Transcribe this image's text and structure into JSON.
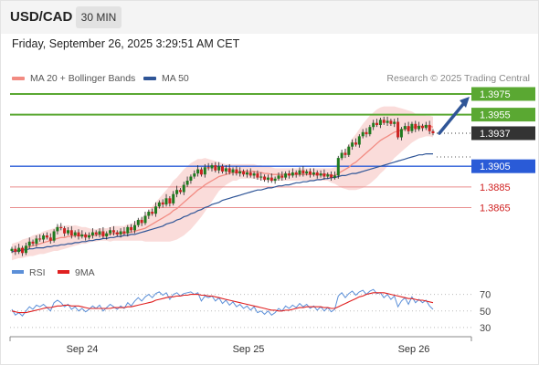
{
  "header": {
    "pair": "USD/CAD",
    "timeframe": "30 MIN"
  },
  "timestamp": "Friday, September 26, 2025 3:29:51 AM CET",
  "legend": {
    "ma20_label": "MA 20 + Bollinger Bands",
    "ma50_label": "MA 50",
    "credit": "Research © 2025 Trading Central"
  },
  "rsi_legend": {
    "rsi_label": "RSI",
    "ma_label": "9MA"
  },
  "colors": {
    "ma20": "#f28b82",
    "bands": "#f8d0cd",
    "ma50": "#2f5597",
    "resistance": "#5aa832",
    "support_major": "#2a5bd7",
    "support_minor": "#e98e8e",
    "current": "#333333",
    "arrow": "#2f5597",
    "rsi": "#5b8fd8",
    "rsi_ma": "#e02020",
    "candle_up": "#1f7a1f",
    "candle_down": "#cc2222"
  },
  "chart_data": [
    {
      "type": "candlestick",
      "title": "USD/CAD",
      "x_labels": [
        "Sep 24",
        "Sep 25",
        "Sep 26"
      ],
      "price_levels": [
        {
          "value": 1.3975,
          "label": "1.3975",
          "kind": "resistance"
        },
        {
          "value": 1.3955,
          "label": "1.3955",
          "kind": "resistance"
        },
        {
          "value": 1.3937,
          "label": "1.3937",
          "kind": "current"
        },
        {
          "value": 1.3905,
          "label": "1.3905",
          "kind": "support_major"
        },
        {
          "value": 1.3885,
          "label": "1.3885",
          "kind": "support_minor"
        },
        {
          "value": 1.3865,
          "label": "1.3865",
          "kind": "support_minor"
        }
      ],
      "close": [
        1.3825,
        1.3822,
        1.3826,
        1.3821,
        1.3828,
        1.3832,
        1.383,
        1.3835,
        1.3834,
        1.3838,
        1.3836,
        1.3833,
        1.3842,
        1.3846,
        1.3845,
        1.384,
        1.3843,
        1.3838,
        1.3841,
        1.3837,
        1.3839,
        1.3836,
        1.3838,
        1.3841,
        1.3839,
        1.3842,
        1.3837,
        1.384,
        1.3843,
        1.3841,
        1.3839,
        1.3842,
        1.384,
        1.3846,
        1.3843,
        1.3848,
        1.3853,
        1.385,
        1.3857,
        1.3861,
        1.3859,
        1.3866,
        1.387,
        1.3868,
        1.3874,
        1.3869,
        1.3878,
        1.3882,
        1.388,
        1.3887,
        1.3891,
        1.3895,
        1.3898,
        1.3902,
        1.3897,
        1.3904,
        1.3903,
        1.3906,
        1.3901,
        1.3905,
        1.39,
        1.3903,
        1.3899,
        1.3902,
        1.3898,
        1.39,
        1.3897,
        1.3899,
        1.3896,
        1.3898,
        1.3894,
        1.3895,
        1.3892,
        1.3894,
        1.3891,
        1.3893,
        1.3896,
        1.3894,
        1.3898,
        1.3896,
        1.3899,
        1.3897,
        1.3901,
        1.3898,
        1.39,
        1.3897,
        1.3899,
        1.3896,
        1.3898,
        1.3895,
        1.3897,
        1.3894,
        1.3896,
        1.3913,
        1.3918,
        1.3916,
        1.3924,
        1.3928,
        1.3926,
        1.3934,
        1.3938,
        1.3936,
        1.3943,
        1.3947,
        1.3945,
        1.395,
        1.3947,
        1.3949,
        1.3946,
        1.3948,
        1.3933,
        1.3941,
        1.3944,
        1.3939,
        1.3946,
        1.3941,
        1.3944,
        1.3942,
        1.3945,
        1.3939,
        1.3937
      ],
      "ma20": [
        1.3822,
        1.3823,
        1.3824,
        1.3825,
        1.3826,
        1.3827,
        1.3828,
        1.3829,
        1.383,
        1.3831,
        1.3832,
        1.3833,
        1.3834,
        1.3835,
        1.3836,
        1.3836,
        1.3837,
        1.3837,
        1.3838,
        1.3838,
        1.3838,
        1.3838,
        1.3838,
        1.3838,
        1.3838,
        1.3839,
        1.3839,
        1.3839,
        1.3839,
        1.384,
        1.384,
        1.384,
        1.384,
        1.3841,
        1.3841,
        1.3842,
        1.3843,
        1.3844,
        1.3845,
        1.3847,
        1.3849,
        1.3851,
        1.3853,
        1.3855,
        1.3857,
        1.3859,
        1.3862,
        1.3864,
        1.3867,
        1.387,
        1.3873,
        1.3876,
        1.3879,
        1.3882,
        1.3884,
        1.3887,
        1.3889,
        1.3891,
        1.3893,
        1.3895,
        1.3896,
        1.3897,
        1.3898,
        1.3899,
        1.3899,
        1.39,
        1.39,
        1.39,
        1.39,
        1.39,
        1.3899,
        1.3899,
        1.3898,
        1.3898,
        1.3897,
        1.3897,
        1.3897,
        1.3897,
        1.3897,
        1.3897,
        1.3897,
        1.3897,
        1.3897,
        1.3897,
        1.3897,
        1.3897,
        1.3897,
        1.3897,
        1.3897,
        1.3897,
        1.3897,
        1.3896,
        1.3896,
        1.3898,
        1.39,
        1.3902,
        1.3904,
        1.3907,
        1.3909,
        1.3912,
        1.3915,
        1.3918,
        1.3921,
        1.3924,
        1.3927,
        1.393,
        1.3932,
        1.3934,
        1.3936,
        1.3938,
        1.3939,
        1.394,
        1.3941,
        1.3942,
        1.3943,
        1.3943,
        1.3944,
        1.3944,
        1.3944,
        1.3944,
        1.3943
      ],
      "band_half": [
        0.0008,
        0.0008,
        0.0008,
        0.0009,
        0.0009,
        0.0009,
        0.001,
        0.001,
        0.001,
        0.0011,
        0.0011,
        0.0011,
        0.0011,
        0.0012,
        0.0012,
        0.0011,
        0.0011,
        0.001,
        0.001,
        0.0009,
        0.0008,
        0.0008,
        0.0007,
        0.0006,
        0.0006,
        0.0006,
        0.0006,
        0.0006,
        0.0007,
        0.0007,
        0.0007,
        0.0007,
        0.0007,
        0.0008,
        0.0008,
        0.0009,
        0.001,
        0.0011,
        0.0013,
        0.0015,
        0.0017,
        0.0019,
        0.0021,
        0.0023,
        0.0025,
        0.0027,
        0.0029,
        0.003,
        0.0031,
        0.0032,
        0.0032,
        0.0032,
        0.0031,
        0.003,
        0.0028,
        0.0026,
        0.0023,
        0.002,
        0.0017,
        0.0014,
        0.0012,
        0.001,
        0.0009,
        0.0008,
        0.0008,
        0.0007,
        0.0007,
        0.0007,
        0.0007,
        0.0007,
        0.0007,
        0.0007,
        0.0007,
        0.0007,
        0.0007,
        0.0006,
        0.0006,
        0.0006,
        0.0006,
        0.0006,
        0.0006,
        0.0006,
        0.0006,
        0.0006,
        0.0006,
        0.0006,
        0.0006,
        0.0006,
        0.0006,
        0.0006,
        0.0006,
        0.0007,
        0.0008,
        0.0012,
        0.0016,
        0.0019,
        0.0022,
        0.0025,
        0.0027,
        0.0029,
        0.0031,
        0.0032,
        0.0033,
        0.0033,
        0.0033,
        0.0032,
        0.0031,
        0.0029,
        0.0027,
        0.0025,
        0.0023,
        0.0021,
        0.0019,
        0.0017,
        0.0015,
        0.0013,
        0.0012,
        0.0011,
        0.001,
        0.001,
        0.001
      ],
      "ma50": [
        1.3822,
        1.3823,
        1.3823,
        1.3824,
        1.3824,
        1.3825,
        1.3825,
        1.3826,
        1.3826,
        1.3826,
        1.3827,
        1.3827,
        1.3828,
        1.3828,
        1.3829,
        1.3829,
        1.383,
        1.383,
        1.3831,
        1.3831,
        1.3832,
        1.3832,
        1.3833,
        1.3833,
        1.3834,
        1.3834,
        1.3835,
        1.3835,
        1.3836,
        1.3836,
        1.3837,
        1.3837,
        1.3838,
        1.3838,
        1.3839,
        1.3839,
        1.384,
        1.3841,
        1.3842,
        1.3843,
        1.3844,
        1.3845,
        1.3846,
        1.3847,
        1.3849,
        1.385,
        1.3851,
        1.3853,
        1.3854,
        1.3856,
        1.3857,
        1.3859,
        1.386,
        1.3862,
        1.3863,
        1.3865,
        1.3866,
        1.3868,
        1.3869,
        1.387,
        1.3872,
        1.3873,
        1.3874,
        1.3875,
        1.3876,
        1.3877,
        1.3878,
        1.3879,
        1.388,
        1.3881,
        1.3882,
        1.3882,
        1.3883,
        1.3884,
        1.3884,
        1.3885,
        1.3886,
        1.3886,
        1.3887,
        1.3887,
        1.3888,
        1.3889,
        1.3889,
        1.389,
        1.389,
        1.3891,
        1.3891,
        1.3892,
        1.3892,
        1.3893,
        1.3893,
        1.3894,
        1.3894,
        1.3895,
        1.3896,
        1.3896,
        1.3897,
        1.3898,
        1.3898,
        1.3899,
        1.39,
        1.3901,
        1.3902,
        1.3903,
        1.3904,
        1.3905,
        1.3906,
        1.3907,
        1.3908,
        1.3909,
        1.391,
        1.3911,
        1.3912,
        1.3913,
        1.3914,
        1.3915,
        1.3916,
        1.3916,
        1.3917,
        1.3917,
        1.3917
      ],
      "projection_target": 1.3975
    },
    {
      "type": "line",
      "title": "RSI",
      "y_ticks": [
        70,
        50,
        30
      ],
      "ylim": [
        20,
        85
      ],
      "series": [
        {
          "name": "RSI",
          "values": [
            52,
            45,
            48,
            44,
            50,
            55,
            52,
            57,
            55,
            58,
            54,
            50,
            60,
            63,
            60,
            55,
            58,
            52,
            55,
            50,
            53,
            49,
            52,
            56,
            53,
            57,
            50,
            54,
            58,
            55,
            52,
            56,
            53,
            60,
            56,
            62,
            66,
            62,
            67,
            70,
            66,
            71,
            73,
            69,
            72,
            64,
            70,
            72,
            68,
            71,
            72,
            73,
            70,
            72,
            62,
            68,
            66,
            68,
            62,
            66,
            59,
            63,
            57,
            61,
            55,
            58,
            53,
            56,
            51,
            55,
            48,
            50,
            46,
            50,
            45,
            48,
            53,
            50,
            56,
            53,
            57,
            54,
            59,
            55,
            58,
            53,
            56,
            51,
            55,
            50,
            54,
            49,
            52,
            68,
            72,
            66,
            71,
            74,
            69,
            73,
            75,
            70,
            74,
            76,
            71,
            72,
            66,
            70,
            64,
            68,
            55,
            62,
            66,
            58,
            67,
            60,
            64,
            60,
            63,
            56,
            52
          ]
        },
        {
          "name": "9MA",
          "values": [
            50,
            49,
            48,
            48,
            48,
            49,
            50,
            51,
            52,
            53,
            54,
            54,
            55,
            56,
            56,
            57,
            57,
            56,
            56,
            56,
            55,
            54,
            53,
            53,
            53,
            53,
            53,
            53,
            53,
            54,
            54,
            54,
            54,
            55,
            55,
            56,
            57,
            58,
            59,
            60,
            61,
            63,
            64,
            65,
            66,
            67,
            67,
            68,
            68,
            69,
            69,
            70,
            70,
            70,
            69,
            69,
            68,
            68,
            67,
            66,
            65,
            64,
            63,
            62,
            61,
            60,
            59,
            58,
            57,
            56,
            55,
            54,
            53,
            52,
            51,
            51,
            50,
            50,
            51,
            51,
            52,
            53,
            54,
            54,
            55,
            55,
            55,
            55,
            55,
            54,
            54,
            53,
            53,
            55,
            57,
            59,
            61,
            63,
            65,
            67,
            68,
            70,
            71,
            72,
            72,
            72,
            72,
            71,
            70,
            69,
            68,
            67,
            66,
            65,
            65,
            64,
            63,
            63,
            62,
            61,
            60
          ]
        }
      ]
    }
  ]
}
